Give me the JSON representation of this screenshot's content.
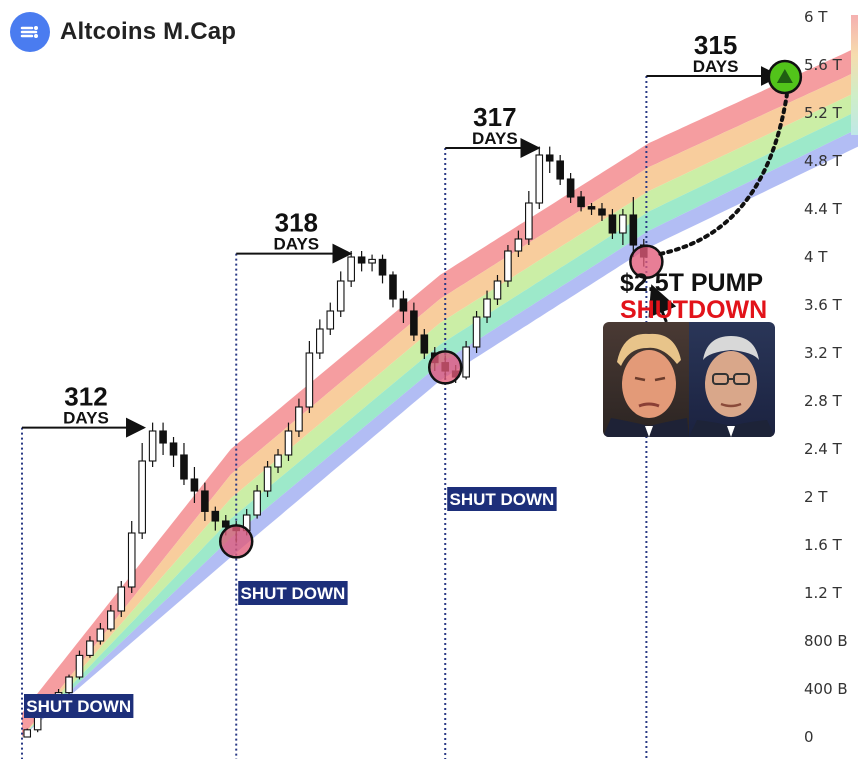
{
  "header": {
    "title": "Altcoins M.Cap",
    "logo_icon": "bitcoin-logo-icon"
  },
  "chart_data": {
    "type": "candlestick",
    "title": "Altcoins M.Cap",
    "ylabel": "",
    "y_unit": "USD",
    "ylim": [
      0,
      6000000000000
    ],
    "y_ticks": [
      "6 T",
      "5.6 T",
      "5.2 T",
      "4.8 T",
      "4.4 T",
      "4 T",
      "3.6 T",
      "3.2 T",
      "2.8 T",
      "2.4 T",
      "2 T",
      "1.6 T",
      "1.2 T",
      "800 B",
      "400 B",
      "0"
    ],
    "x_range": [
      0,
      1600
    ],
    "rainbow_bands": {
      "colors": [
        "#f48f93",
        "#f7c690",
        "#c4ec9a",
        "#8fe6c3",
        "#a7b4f2"
      ],
      "boundaries": [
        {
          "x": [
            0,
            400,
            800,
            1200,
            1600
          ],
          "y": [
            0.2,
            2.4,
            3.85,
            4.95,
            5.75
          ]
        },
        {
          "x": [
            0,
            400,
            800,
            1200,
            1600
          ],
          "y": [
            0,
            2.19,
            3.65,
            4.75,
            5.55
          ]
        },
        {
          "x": [
            0,
            400,
            800,
            1200,
            1600
          ],
          "y": [
            0,
            1.99,
            3.45,
            4.55,
            5.38
          ]
        },
        {
          "x": [
            0,
            400,
            800,
            1200,
            1600
          ],
          "y": [
            0,
            1.82,
            3.27,
            4.38,
            5.22
          ]
        },
        {
          "x": [
            0,
            400,
            800,
            1200,
            1600
          ],
          "y": [
            0,
            1.66,
            3.11,
            4.22,
            5.07
          ]
        },
        {
          "x": [
            0,
            400,
            800,
            1200,
            1600
          ],
          "y": [
            0,
            1.5,
            2.97,
            4.08,
            4.92
          ]
        }
      ]
    },
    "candles_t": [
      [
        10,
        0.0,
        0.06,
        0.0,
        0.07
      ],
      [
        30,
        0.06,
        0.22,
        0.04,
        0.25
      ],
      [
        50,
        0.22,
        0.3,
        0.18,
        0.33
      ],
      [
        70,
        0.3,
        0.37,
        0.28,
        0.4
      ],
      [
        90,
        0.37,
        0.5,
        0.35,
        0.52
      ],
      [
        110,
        0.5,
        0.68,
        0.48,
        0.72
      ],
      [
        130,
        0.68,
        0.8,
        0.66,
        0.84
      ],
      [
        150,
        0.8,
        0.9,
        0.77,
        0.95
      ],
      [
        170,
        0.9,
        1.05,
        0.88,
        1.1
      ],
      [
        190,
        1.05,
        1.25,
        1.0,
        1.3
      ],
      [
        210,
        1.25,
        1.7,
        1.2,
        1.8
      ],
      [
        230,
        1.7,
        2.3,
        1.65,
        2.45
      ],
      [
        250,
        2.3,
        2.55,
        2.25,
        2.62
      ],
      [
        270,
        2.55,
        2.45,
        2.35,
        2.62
      ],
      [
        290,
        2.45,
        2.35,
        2.25,
        2.5
      ],
      [
        310,
        2.35,
        2.15,
        2.1,
        2.45
      ],
      [
        330,
        2.15,
        2.05,
        1.95,
        2.25
      ],
      [
        350,
        2.05,
        1.88,
        1.8,
        2.12
      ],
      [
        370,
        1.88,
        1.8,
        1.72,
        1.92
      ],
      [
        390,
        1.8,
        1.75,
        1.68,
        1.85
      ],
      [
        410,
        1.75,
        1.72,
        1.62,
        1.8
      ],
      [
        430,
        1.72,
        1.85,
        1.68,
        1.9
      ],
      [
        450,
        1.85,
        2.05,
        1.82,
        2.1
      ],
      [
        470,
        2.05,
        2.25,
        2.0,
        2.3
      ],
      [
        490,
        2.25,
        2.35,
        2.2,
        2.4
      ],
      [
        510,
        2.35,
        2.55,
        2.3,
        2.62
      ],
      [
        530,
        2.55,
        2.75,
        2.5,
        2.82
      ],
      [
        550,
        2.75,
        3.2,
        2.7,
        3.3
      ],
      [
        570,
        3.2,
        3.4,
        3.15,
        3.48
      ],
      [
        590,
        3.4,
        3.55,
        3.35,
        3.62
      ],
      [
        610,
        3.55,
        3.8,
        3.5,
        3.88
      ],
      [
        630,
        3.8,
        4.0,
        3.75,
        4.05
      ],
      [
        650,
        4.0,
        3.95,
        3.88,
        4.05
      ],
      [
        670,
        3.95,
        3.98,
        3.88,
        4.02
      ],
      [
        690,
        3.98,
        3.85,
        3.78,
        4.02
      ],
      [
        710,
        3.85,
        3.65,
        3.58,
        3.88
      ],
      [
        730,
        3.65,
        3.55,
        3.45,
        3.72
      ],
      [
        750,
        3.55,
        3.35,
        3.3,
        3.62
      ],
      [
        770,
        3.35,
        3.2,
        3.15,
        3.4
      ],
      [
        790,
        3.2,
        3.12,
        3.05,
        3.25
      ],
      [
        810,
        3.12,
        3.05,
        2.98,
        3.18
      ],
      [
        830,
        3.05,
        3.0,
        2.95,
        3.1
      ],
      [
        850,
        3.0,
        3.25,
        2.98,
        3.3
      ],
      [
        870,
        3.25,
        3.5,
        3.2,
        3.55
      ],
      [
        890,
        3.5,
        3.65,
        3.45,
        3.72
      ],
      [
        910,
        3.65,
        3.8,
        3.6,
        3.85
      ],
      [
        930,
        3.8,
        4.05,
        3.75,
        4.1
      ],
      [
        950,
        4.05,
        4.15,
        4.0,
        4.22
      ],
      [
        970,
        4.15,
        4.45,
        4.1,
        4.55
      ],
      [
        990,
        4.45,
        4.85,
        4.4,
        4.92
      ],
      [
        1010,
        4.85,
        4.8,
        4.7,
        4.92
      ],
      [
        1030,
        4.8,
        4.65,
        4.6,
        4.85
      ],
      [
        1050,
        4.65,
        4.5,
        4.45,
        4.7
      ],
      [
        1070,
        4.5,
        4.42,
        4.38,
        4.55
      ],
      [
        1090,
        4.42,
        4.4,
        4.35,
        4.45
      ],
      [
        1110,
        4.4,
        4.35,
        4.3,
        4.45
      ],
      [
        1130,
        4.35,
        4.2,
        4.15,
        4.4
      ],
      [
        1150,
        4.2,
        4.35,
        4.1,
        4.4
      ],
      [
        1170,
        4.35,
        4.1,
        4.0,
        4.5
      ],
      [
        1190,
        4.1,
        4.0,
        3.92,
        4.15
      ]
    ],
    "cycles": [
      {
        "days": "312",
        "days_label": "DAYS",
        "start_x": 0,
        "peak_x": 245,
        "peak_y": 2.57,
        "bottom_x": 410,
        "bottom_y": 1.63,
        "badge": "SHUT DOWN"
      },
      {
        "days": "318",
        "days_label": "DAYS",
        "start_x": 410,
        "peak_x": 640,
        "peak_y": 4.02,
        "bottom_x": 810,
        "bottom_y": 3.08,
        "badge": "SHUT DOWN"
      },
      {
        "days": "317",
        "days_label": "DAYS",
        "start_x": 810,
        "peak_x": 1000,
        "peak_y": 4.9,
        "bottom_x": 1195,
        "bottom_y": 3.96,
        "badge": "SHUT DOWN"
      },
      {
        "days": "315",
        "days_label": "DAYS",
        "start_x": 1195,
        "peak_x": 1460,
        "peak_y": 5.5
      }
    ],
    "projection": {
      "from_x": 1195,
      "from_y": 3.96,
      "to_x": 1460,
      "to_y": 5.5,
      "style": "dotted"
    },
    "annotation": {
      "line1": "$2.5T PUMP",
      "line2": "SHUTDOWN"
    },
    "colors": {
      "up": "#ffffff",
      "down": "#111111",
      "bottom_marker": "#e05a78",
      "peak_marker": "#52c41a",
      "badge_bg": "#1d2f7a",
      "cycle_line": "#2a3a85"
    }
  }
}
